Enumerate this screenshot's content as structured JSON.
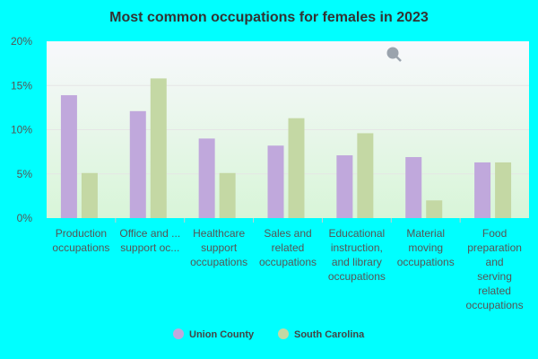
{
  "chart_data": {
    "type": "bar",
    "title": "Most common occupations for females in 2023",
    "xlabel": "",
    "ylabel": "",
    "ylim": [
      0,
      20
    ],
    "yticks": [
      0,
      5,
      10,
      15,
      20
    ],
    "ytick_labels": [
      "0%",
      "5%",
      "10%",
      "15%",
      "20%"
    ],
    "categories": [
      [
        "Production",
        "occupations"
      ],
      [
        "Office and ...",
        "support oc..."
      ],
      [
        "Healthcare",
        "support",
        "occupations"
      ],
      [
        "Sales and",
        "related",
        "occupations"
      ],
      [
        "Educational",
        "instruction,",
        "and library",
        "occupations"
      ],
      [
        "Material",
        "moving",
        "occupations"
      ],
      [
        "Food",
        "preparation",
        "and",
        "serving",
        "related",
        "occupations"
      ]
    ],
    "series": [
      {
        "name": "Union County",
        "values": [
          13.9,
          12.1,
          9.0,
          8.2,
          7.1,
          6.9,
          6.3
        ]
      },
      {
        "name": "South Carolina",
        "values": [
          5.1,
          15.8,
          5.1,
          11.3,
          9.6,
          2.0,
          6.3
        ]
      }
    ],
    "legend_position": "bottom",
    "grid": true
  },
  "colors": {
    "background": "#00ffff",
    "plot_top": "#f8f8fc",
    "plot_bottom": "#d8f5d8",
    "series": [
      "#c0a8dc",
      "#c4d8a4"
    ]
  }
}
